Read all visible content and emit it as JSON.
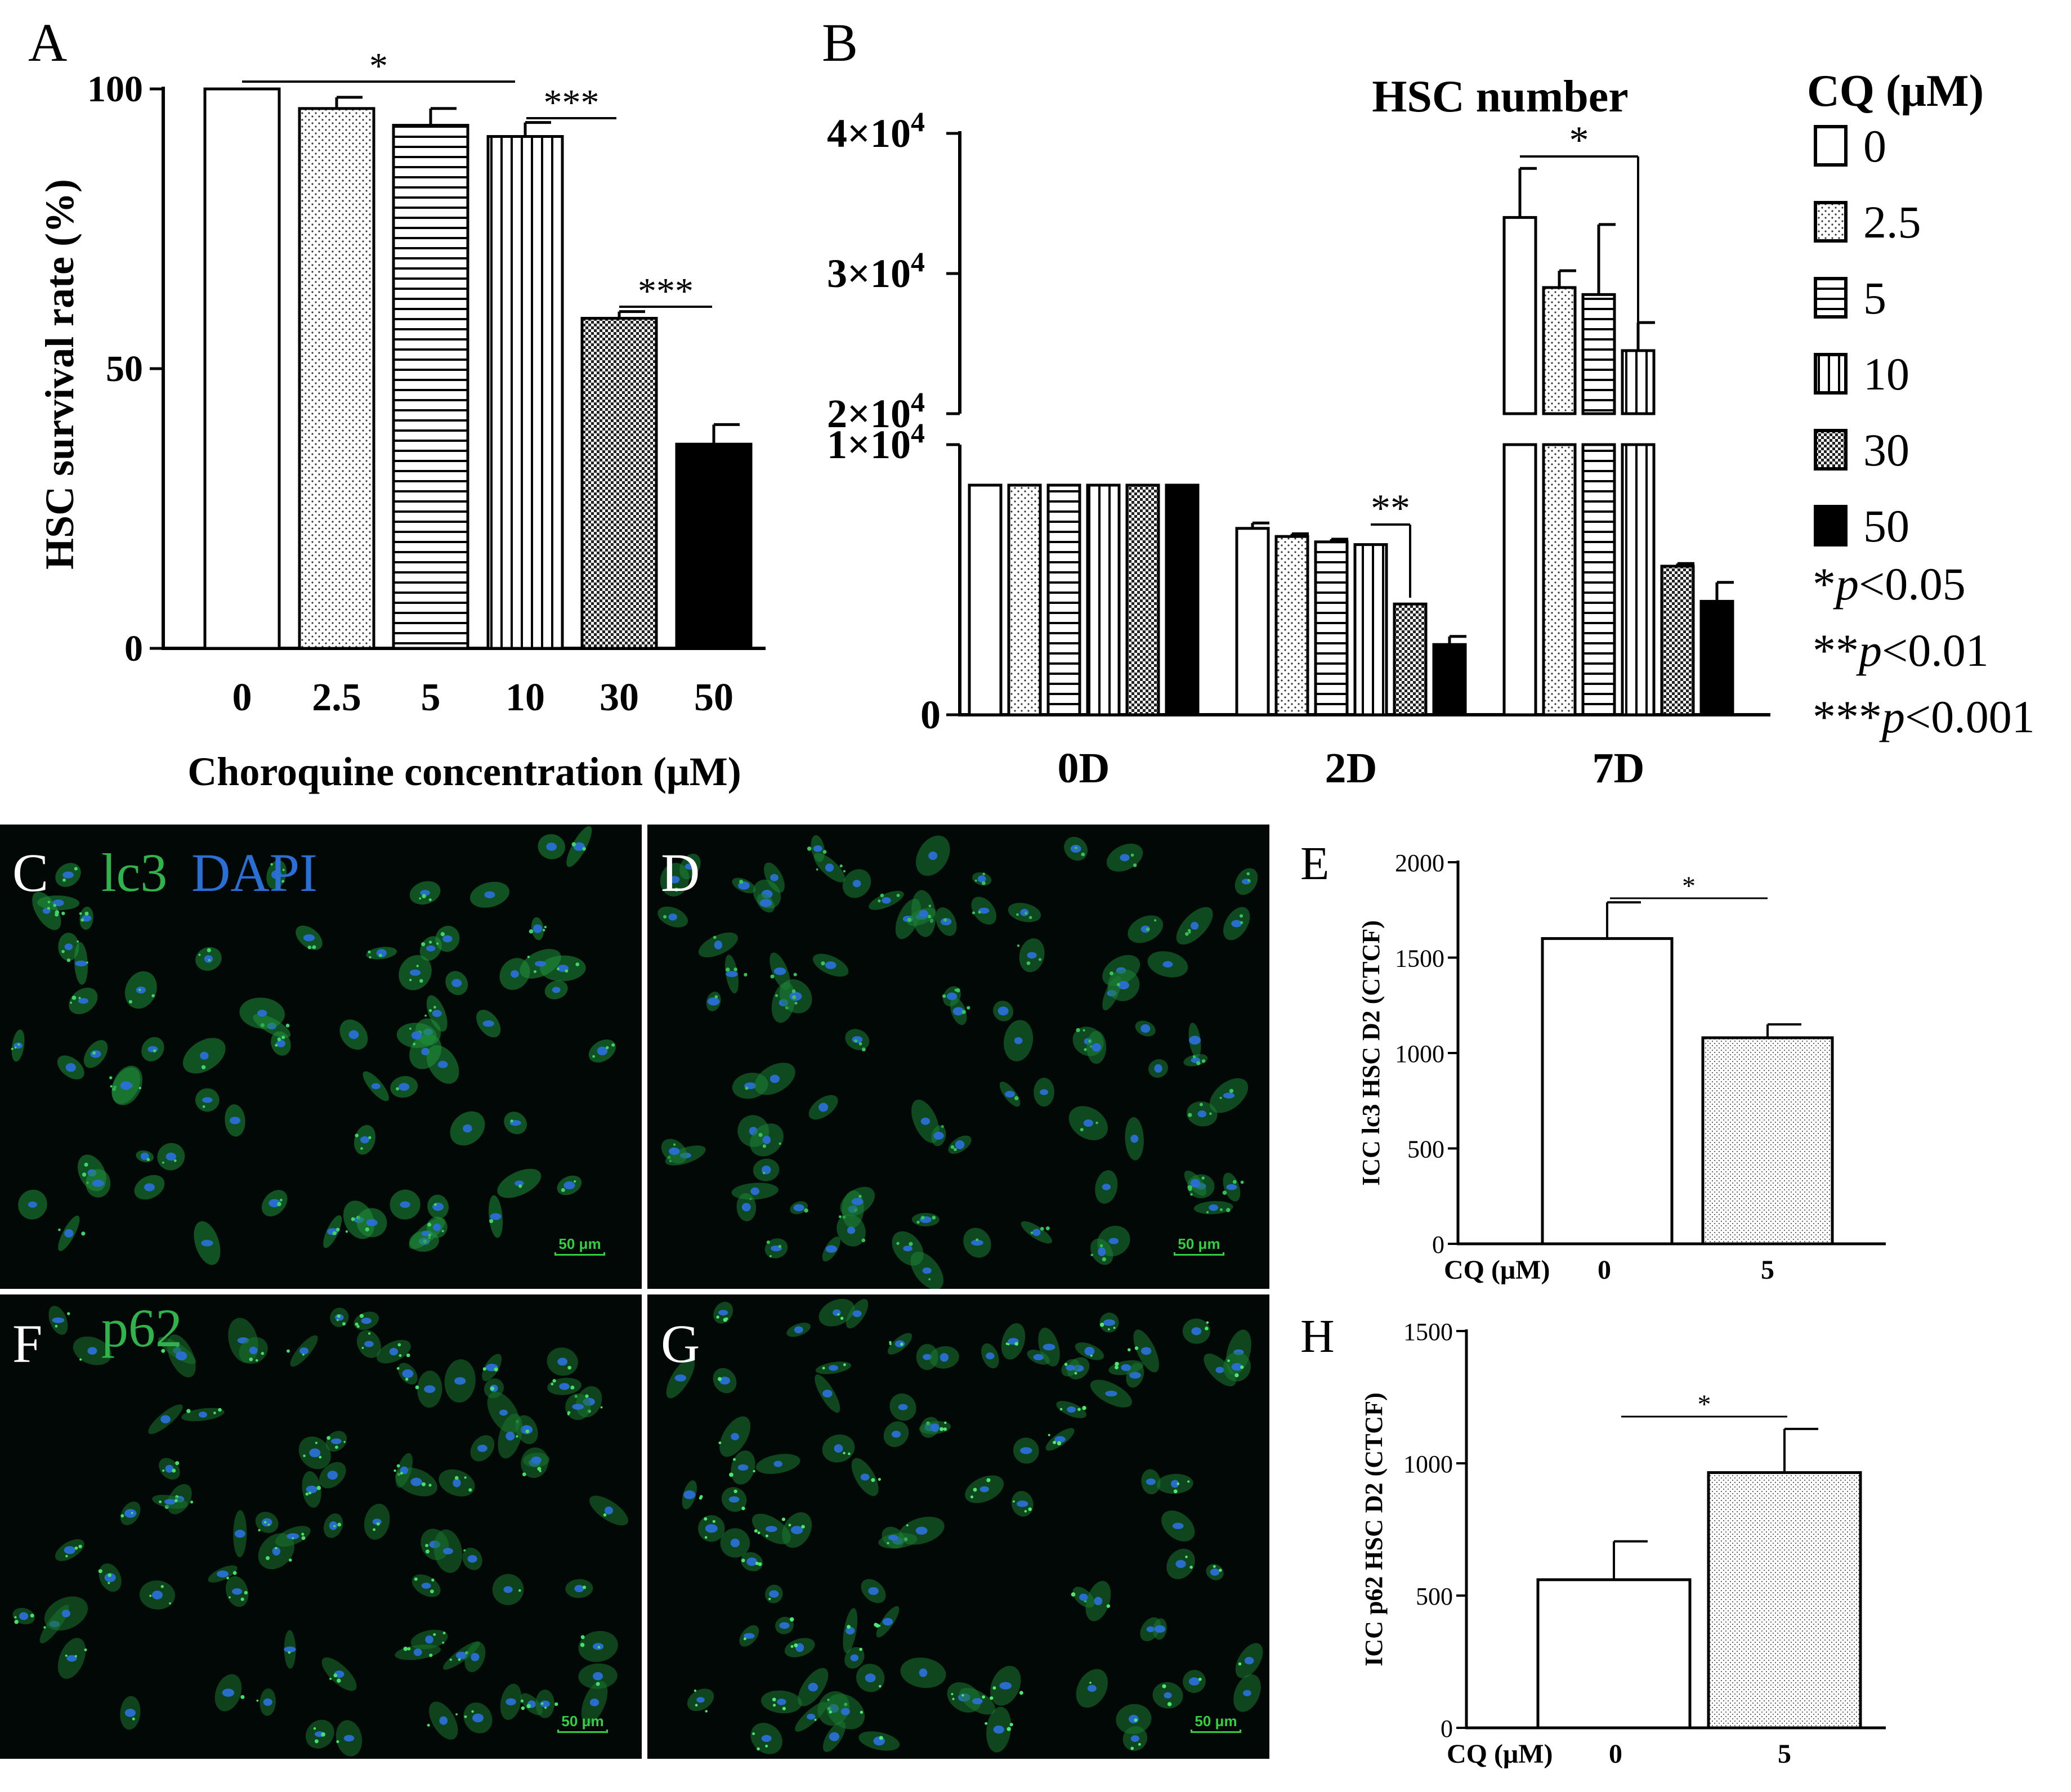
{
  "panels": {
    "A": "A",
    "B": "B",
    "C": "C",
    "D": "D",
    "E": "E",
    "F": "F",
    "G": "G",
    "H": "H"
  },
  "micrographs": {
    "C_stain_1": "lc3",
    "C_stain_2": "DAPI",
    "F_stain": "p62",
    "scalebar": "50 μm",
    "colors": {
      "lc3": "#2fb34a",
      "dapi": "#2a6fd6",
      "background": "#020806"
    }
  },
  "chart_data": [
    {
      "id": "A",
      "type": "bar",
      "ylabel": "HSC survival rate (%)",
      "xlabel": "Choroquine concentration (μM)",
      "categories": [
        "0",
        "2.5",
        "5",
        "10",
        "30",
        "50"
      ],
      "values": [
        100,
        96.5,
        93.5,
        91.5,
        59,
        36.5
      ],
      "errors": [
        0,
        2,
        3,
        2.5,
        1.2,
        3.5
      ],
      "patterns": [
        "white",
        "dots",
        "hlines",
        "vlines",
        "check",
        "black"
      ],
      "ylim": [
        0,
        100
      ],
      "yticks": [
        "0",
        "50",
        "100"
      ],
      "significance": [
        {
          "label": "*",
          "from": "0",
          "to": "10"
        },
        {
          "label": "***",
          "from": "10",
          "to": "30"
        },
        {
          "label": "***",
          "from": "30",
          "to": "50"
        }
      ]
    },
    {
      "id": "B",
      "type": "bar",
      "title": "HSC number",
      "categories": [
        "0D",
        "2D",
        "7D"
      ],
      "legend_title": "CQ (μM)",
      "legend_items": [
        "0",
        "2.5",
        "5",
        "10",
        "30",
        "50"
      ],
      "legend_notes": [
        {
          "stars": "*",
          "p": "p",
          "text": "<0.05"
        },
        {
          "stars": "**",
          "p": "p",
          "text": "<0.01"
        },
        {
          "stars": "***",
          "p": "p",
          "text": "<0.001"
        }
      ],
      "series": [
        {
          "name": "0",
          "values": [
            8500,
            6900,
            34000
          ],
          "errors": [
            0,
            200,
            3500
          ]
        },
        {
          "name": "2.5",
          "values": [
            8500,
            6600,
            29000
          ],
          "errors": [
            0,
            100,
            1200
          ]
        },
        {
          "name": "5",
          "values": [
            8500,
            6400,
            28500
          ],
          "errors": [
            0,
            100,
            5000
          ]
        },
        {
          "name": "10",
          "values": [
            8500,
            6300,
            24500
          ],
          "errors": [
            0,
            0,
            2000
          ]
        },
        {
          "name": "30",
          "values": [
            8500,
            4100,
            5500
          ],
          "errors": [
            0,
            0,
            100
          ]
        },
        {
          "name": "50",
          "values": [
            8500,
            2600,
            4200
          ],
          "errors": [
            0,
            300,
            700
          ]
        }
      ],
      "ylim": [
        0,
        40000
      ],
      "axis_break": [
        10000,
        20000
      ],
      "yticks": [
        "0",
        "1×10",
        "2×10",
        "3×10",
        "4×10"
      ],
      "ytick_exp": "4",
      "significance": [
        {
          "label": "**",
          "group": "2D",
          "from": "10",
          "to": "30"
        },
        {
          "label": "*",
          "group": "7D",
          "from": "0",
          "to": "10"
        }
      ]
    },
    {
      "id": "E",
      "type": "bar",
      "ylabel": "ICC lc3 HSC D2 (CTCF)",
      "xlabel": "CQ (μM)",
      "categories": [
        "0",
        "5"
      ],
      "values": [
        1600,
        1080
      ],
      "errors": [
        190,
        70
      ],
      "ylim": [
        0,
        2000
      ],
      "yticks": [
        "0",
        "500",
        "1000",
        "1500",
        "2000"
      ],
      "significance": [
        {
          "label": "*",
          "from": "0",
          "to": "5"
        }
      ]
    },
    {
      "id": "H",
      "type": "bar",
      "ylabel": "ICC p62 HSC D2 (CTCF)",
      "xlabel": "CQ (μM)",
      "categories": [
        "0",
        "5"
      ],
      "values": [
        560,
        965
      ],
      "errors": [
        145,
        165
      ],
      "ylim": [
        0,
        1500
      ],
      "yticks": [
        "0",
        "500",
        "1000",
        "1500"
      ],
      "significance": [
        {
          "label": "*",
          "from": "0",
          "to": "5"
        }
      ]
    }
  ]
}
